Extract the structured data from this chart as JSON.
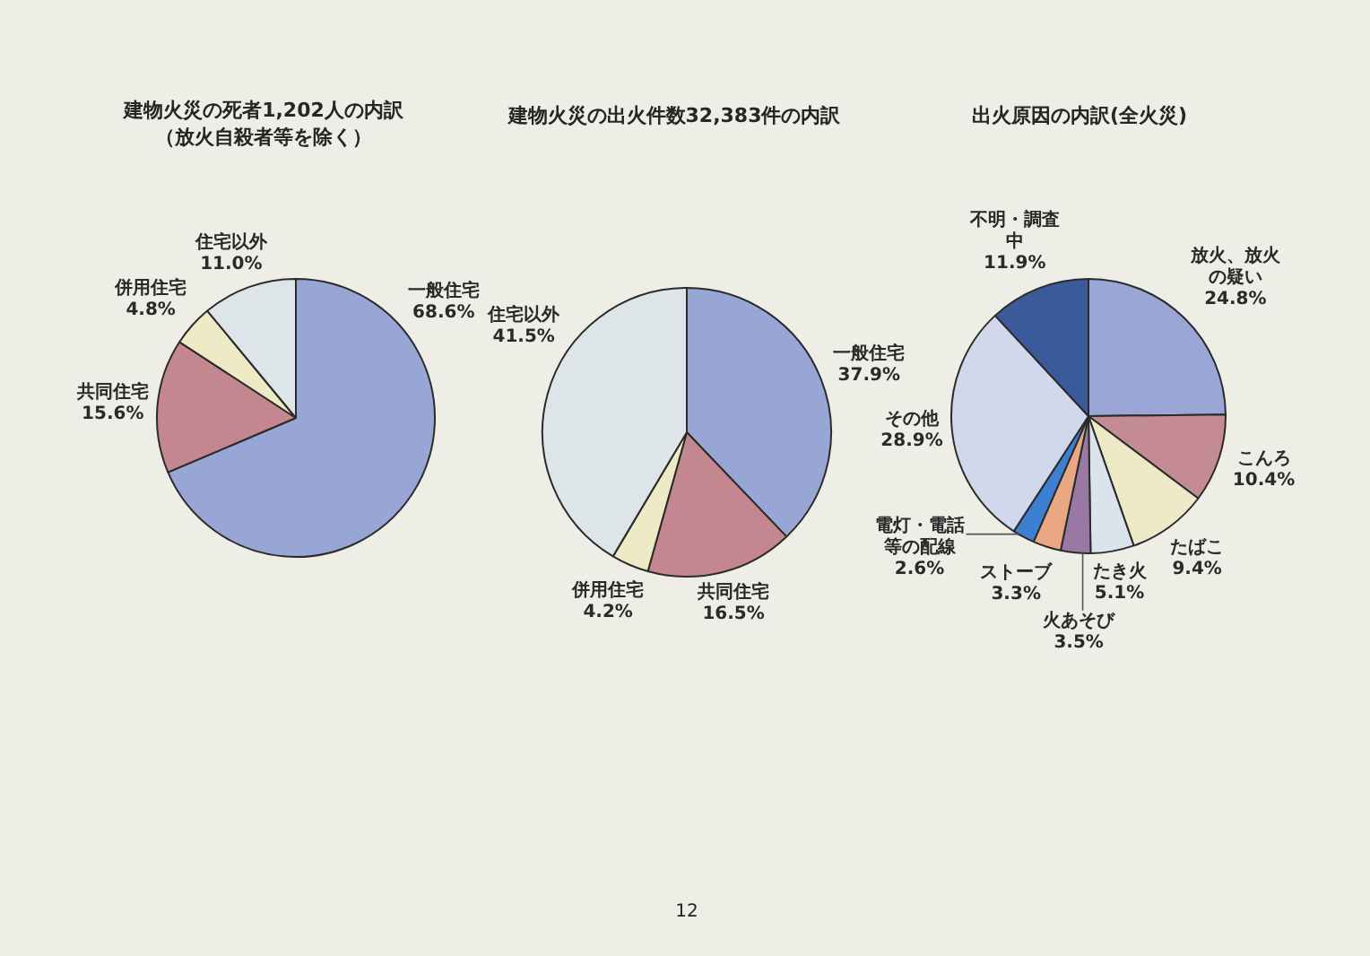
{
  "chart_data": [
    {
      "type": "pie",
      "title": "建物火災の死者1,202人の内訳",
      "subtitle": "（放火自殺者等を除く）",
      "categories": [
        "一般住宅",
        "共同住宅",
        "併用住宅",
        "住宅以外"
      ],
      "values": [
        68.6,
        15.6,
        4.8,
        11.0
      ],
      "colors": [
        "#98a6d6",
        "#c4878f",
        "#eeeac6",
        "#dde5e9"
      ],
      "value_labels": [
        "68.6%",
        "15.6%",
        "4.8%",
        "11.0%"
      ]
    },
    {
      "type": "pie",
      "title": "建物火災の出火件数32,383件の内訳",
      "categories": [
        "一般住宅",
        "共同住宅",
        "併用住宅",
        "住宅以外"
      ],
      "values": [
        37.9,
        16.5,
        4.2,
        41.5
      ],
      "colors": [
        "#98a6d6",
        "#c4878f",
        "#eeeac6",
        "#dde5e9"
      ],
      "value_labels": [
        "37.9%",
        "16.5%",
        "4.2%",
        "41.5%"
      ],
      "annotations": [
        "12"
      ]
    },
    {
      "type": "pie",
      "title": "出火原因の内訳(全火災)",
      "categories": [
        "放火、放火の疑い",
        "こんろ",
        "たばこ",
        "たき火",
        "火あそび",
        "ストーブ",
        "電灯・電話等の配線",
        "その他",
        "不明・調査中"
      ],
      "values": [
        24.8,
        10.4,
        9.4,
        5.1,
        3.5,
        3.3,
        2.6,
        28.9,
        11.9
      ],
      "colors": [
        "#9aa6d6",
        "#c58b93",
        "#eeeac8",
        "#dae4ec",
        "#9a78a4",
        "#e9a882",
        "#3d80d2",
        "#d2d8ec",
        "#3b5a9c"
      ],
      "value_labels": [
        "24.8%",
        "10.4%",
        "9.4%",
        "5.1%",
        "3.5%",
        "3.3%",
        "2.6%",
        "28.9%",
        "11.9%"
      ]
    }
  ]
}
